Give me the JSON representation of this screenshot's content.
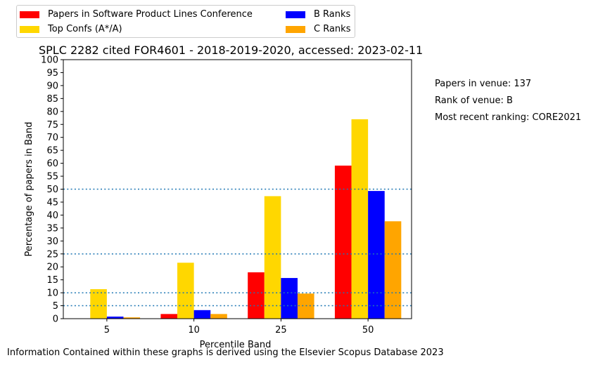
{
  "chart_data": {
    "type": "bar",
    "title": "SPLC 2282 cited FOR4601 - 2018-2019-2020, accessed: 2023-02-11",
    "xlabel": "Percentile Band",
    "ylabel": "Percentage of papers in Band",
    "categories": [
      "5",
      "10",
      "25",
      "50"
    ],
    "series": [
      {
        "name": "Papers in Software Product Lines Conference",
        "color": "#ff0000",
        "values": [
          0,
          1.8,
          17.9,
          59.1
        ]
      },
      {
        "name": "Top Confs (A*/A)",
        "color": "#ffd700",
        "values": [
          11.4,
          21.6,
          47.3,
          77.0
        ]
      },
      {
        "name": "B Ranks",
        "color": "#0000ff",
        "values": [
          0.8,
          3.3,
          15.7,
          49.3
        ]
      },
      {
        "name": "C Ranks",
        "color": "#ffa500",
        "values": [
          0.5,
          1.8,
          9.7,
          37.6
        ]
      }
    ],
    "ylim": [
      0,
      100
    ],
    "yticks": [
      0,
      5,
      10,
      15,
      20,
      25,
      30,
      35,
      40,
      45,
      50,
      55,
      60,
      65,
      70,
      75,
      80,
      85,
      90,
      95,
      100
    ],
    "reference_lines": [
      5,
      10,
      25,
      50
    ],
    "reference_line_color": "#1f77b4",
    "legend_position": "top-left"
  },
  "side_notes": [
    "Papers in venue: 137",
    "Rank of venue: B",
    "Most recent ranking: CORE2021"
  ],
  "footer": "Information Contained within these graphs is derived using the Elsevier Scopus Database 2023"
}
